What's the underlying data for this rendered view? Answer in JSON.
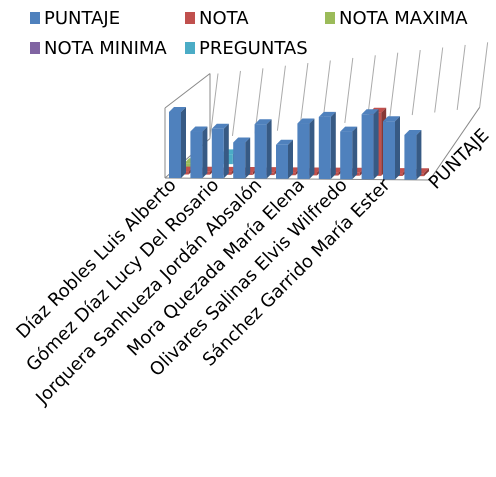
{
  "chart_data": {
    "type": "bar3d",
    "categories": [
      "Díaz Robles Luis Alberto",
      null,
      "Gómez Díaz Lucy Del Rosario",
      null,
      "Jorquera Sanhueza Jordán Absalón",
      null,
      "Mora Quezada María Elena",
      null,
      "Olivares Salinas Elvis Wilfredo",
      null,
      "Sánchez Garrido María Ester",
      null
    ],
    "series": [
      {
        "name": "PUNTAJE",
        "color": "#4f81bd",
        "values": [
          68,
          48,
          51,
          37,
          56,
          35,
          57,
          64,
          49,
          67,
          60,
          46
        ]
      },
      {
        "name": "NOTA",
        "color": "#c0504d",
        "values": [
          3,
          3,
          3,
          3,
          3,
          3,
          3,
          3,
          3,
          65,
          3,
          3
        ]
      },
      {
        "name": "NOTA MAXIMA",
        "color": "#9bbb59",
        "values": [
          8,
          0,
          0,
          0,
          0,
          0,
          0,
          0,
          0,
          0,
          0,
          0
        ]
      },
      {
        "name": "NOTA MINIMA",
        "color": "#8064a2",
        "values": [
          0,
          0,
          0,
          0,
          0,
          0,
          0,
          0,
          0,
          0,
          0,
          0
        ]
      },
      {
        "name": "PREGUNTAS",
        "color": "#4bacc6",
        "values": [
          0,
          10,
          0,
          0,
          0,
          0,
          0,
          0,
          0,
          0,
          0,
          0
        ]
      }
    ],
    "depth_labels": [
      "PUNTAJE"
    ],
    "ylim": [
      0,
      70
    ]
  }
}
